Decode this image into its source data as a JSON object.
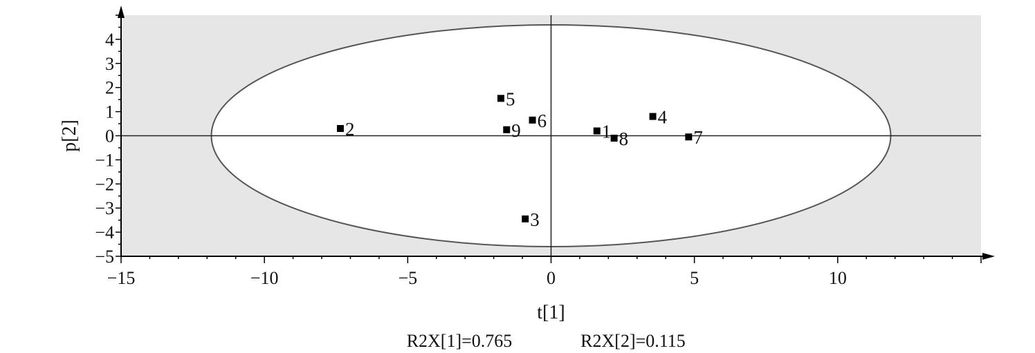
{
  "chart_data": {
    "type": "scatter",
    "xlabel": "t[1]",
    "ylabel": "p[2]",
    "xlim": [
      -15,
      15
    ],
    "ylim": [
      -5,
      5
    ],
    "x_ticks": [
      -15,
      -10,
      -5,
      0,
      5,
      10
    ],
    "y_ticks": [
      -5,
      -4,
      -3,
      -2,
      -1,
      0,
      1,
      2,
      3,
      4
    ],
    "x_tick_labels": [
      "−15",
      "−10",
      "−5",
      "0",
      "5",
      "10"
    ],
    "y_tick_labels": [
      "−5",
      "−4",
      "−3",
      "−2",
      "−1",
      "0",
      "1",
      "2",
      "3",
      "4"
    ],
    "ellipse": {
      "cx": 0,
      "cy": 0,
      "rx": 11.85,
      "ry": 4.6
    },
    "points": [
      {
        "label": "1",
        "x": 1.6,
        "y": 0.2
      },
      {
        "label": "2",
        "x": -7.35,
        "y": 0.3
      },
      {
        "label": "3",
        "x": -0.9,
        "y": -3.45
      },
      {
        "label": "4",
        "x": 3.55,
        "y": 0.8
      },
      {
        "label": "5",
        "x": -1.75,
        "y": 1.55
      },
      {
        "label": "6",
        "x": -0.65,
        "y": 0.65
      },
      {
        "label": "7",
        "x": 4.8,
        "y": -0.05
      },
      {
        "label": "8",
        "x": 2.2,
        "y": -0.1
      },
      {
        "label": "9",
        "x": -1.55,
        "y": 0.25
      }
    ],
    "footer_left": "R2X[1]=0.765",
    "footer_right": "R2X[2]=0.115",
    "grid": false,
    "colors": {
      "background": "#e6e6e6",
      "ellipse_fill": "#ffffff",
      "marker": "#000000"
    }
  }
}
